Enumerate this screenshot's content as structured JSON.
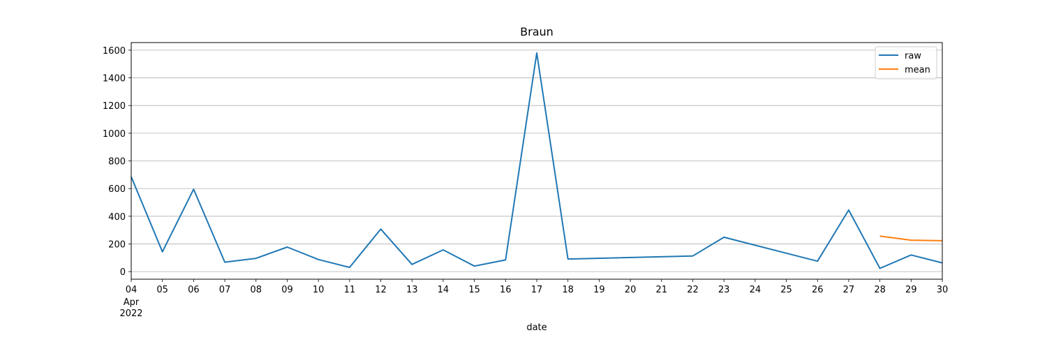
{
  "chart_data": {
    "type": "line",
    "title": "Braun",
    "xlabel": "date",
    "ylabel": "",
    "x_tick_labels": [
      "04",
      "05",
      "06",
      "07",
      "08",
      "09",
      "10",
      "11",
      "12",
      "13",
      "14",
      "15",
      "16",
      "17",
      "18",
      "19",
      "20",
      "21",
      "22",
      "23",
      "24",
      "25",
      "26",
      "27",
      "28",
      "29",
      "30"
    ],
    "x_tick_month": "Apr",
    "x_tick_year": "2022",
    "xlim": [
      "2022-04-04",
      "2022-04-30"
    ],
    "ylim": [
      -55,
      1655
    ],
    "y_ticks": [
      0,
      200,
      400,
      600,
      800,
      1000,
      1200,
      1400,
      1600
    ],
    "grid": "horizontal",
    "legend_position": "top-right",
    "series": [
      {
        "name": "raw",
        "color": "#1f77b4",
        "x": [
          "2022-04-04",
          "2022-04-05",
          "2022-04-06",
          "2022-04-07",
          "2022-04-08",
          "2022-04-09",
          "2022-04-10",
          "2022-04-11",
          "2022-04-12",
          "2022-04-13",
          "2022-04-14",
          "2022-04-15",
          "2022-04-16",
          "2022-04-17",
          "2022-04-18",
          "2022-04-22",
          "2022-04-23",
          "2022-04-26",
          "2022-04-27",
          "2022-04-28",
          "2022-04-29",
          "2022-04-30"
        ],
        "values": [
          685,
          143,
          595,
          68,
          96,
          177,
          87,
          30,
          307,
          52,
          157,
          40,
          84,
          1580,
          91,
          113,
          248,
          75,
          445,
          23,
          120,
          63
        ]
      },
      {
        "name": "mean",
        "color": "#ff7f0e",
        "x": [
          "2022-04-28",
          "2022-04-29",
          "2022-04-30"
        ],
        "values": [
          256,
          227,
          223
        ]
      }
    ]
  }
}
